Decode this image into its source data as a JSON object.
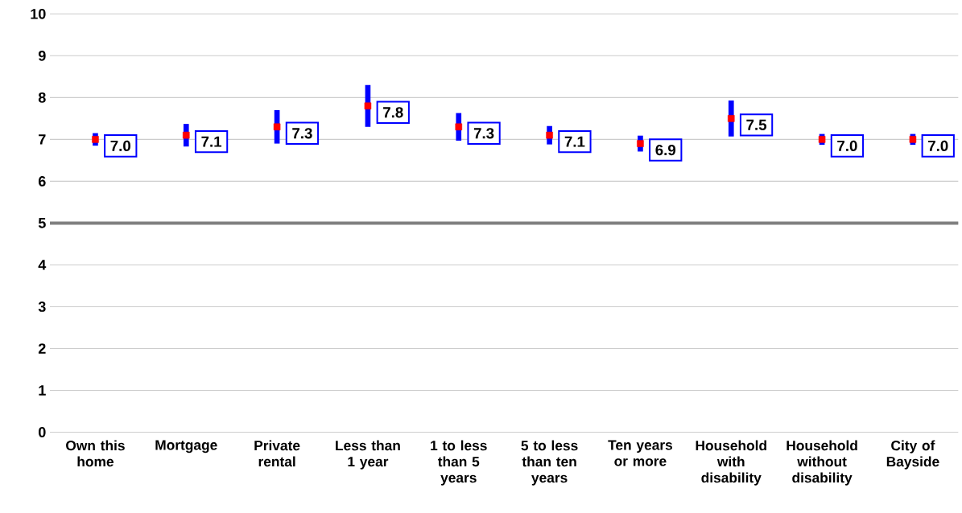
{
  "chart_data": {
    "type": "scatter",
    "categories": [
      "Own this home",
      "Mortgage",
      "Private rental",
      "Less than 1 year",
      "1 to less than 5 years",
      "5 to less than ten years",
      "Ten years or more",
      "Household with disability",
      "Household without disability",
      "City of Bayside"
    ],
    "values": [
      7.0,
      7.1,
      7.3,
      7.8,
      7.3,
      7.1,
      6.9,
      7.5,
      7.0,
      7.0
    ],
    "errors": [
      0.15,
      0.27,
      0.4,
      0.5,
      0.33,
      0.22,
      0.19,
      0.43,
      0.13,
      0.13
    ],
    "value_labels": [
      "7.0",
      "7.1",
      "7.3",
      "7.8",
      "7.3",
      "7.1",
      "6.9",
      "7.5",
      "7.0",
      "7.0"
    ],
    "color": "#ff0000",
    "marker": "square",
    "ylim": [
      0,
      10
    ],
    "yticks": [
      0,
      1,
      2,
      3,
      4,
      5,
      6,
      7,
      8,
      9,
      10
    ],
    "grid": "y",
    "ref_lines": [
      {
        "axis": "y",
        "value": 5,
        "color": "#808080"
      }
    ]
  }
}
